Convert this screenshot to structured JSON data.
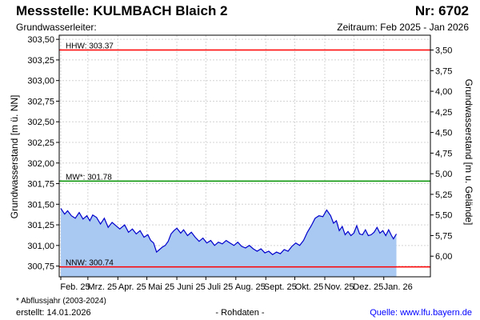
{
  "header": {
    "title": "Messstelle: KULMBACH Blaich 2",
    "station_no": "Nr: 6702",
    "aquifer": "Grundwasserleiter:",
    "period": "Zeitraum: Feb 2025 - Jan 2026"
  },
  "footer": {
    "footnote": "* Abflussjahr (2003-2024)",
    "created": "erstellt:  14.01.2026",
    "raw_data": "- Rohdaten -",
    "source": "Quelle: www.lfu.bayern.de"
  },
  "chart_data": {
    "type": "area",
    "ylabel": "Grundwasserstand [m ü. NN]",
    "ylabel_right": "Grundwasserstand [m u. Gelände]",
    "ylim": [
      300.62,
      303.55
    ],
    "yticks": [
      "303,50",
      "303,25",
      "303,00",
      "302,75",
      "302,50",
      "302,25",
      "302,00",
      "301,75",
      "301,50",
      "301,25",
      "301,00",
      "300,75"
    ],
    "yticks_right": [
      "3,50",
      "3,75",
      "4,00",
      "4,25",
      "4,50",
      "4,75",
      "5,00",
      "5,25",
      "5,50",
      "5,75",
      "6,00"
    ],
    "right_axis_ref_depth0_level": 306.87,
    "xticks": [
      "Feb. 25",
      "Mrz. 25",
      "Apr. 25",
      "Mai 25",
      "Juni 25",
      "Juli 25",
      "Aug. 25",
      "Sept. 25",
      "Okt. 25",
      "Nov. 25",
      "Dez. 25",
      "Jan. 26"
    ],
    "x_start": "2025-02-01",
    "x_end": "2026-01-31",
    "grid": true,
    "reference_lines": [
      {
        "label": "HHW: 303.37",
        "value": 303.37,
        "color": "#ff0000"
      },
      {
        "label": "MW*: 301.78",
        "value": 301.78,
        "color": "#009000"
      },
      {
        "label": "NNW: 300.74",
        "value": 300.74,
        "color": "#ff0000"
      }
    ],
    "series": [
      {
        "color": "#0000cc",
        "fill": "#a9c8f2",
        "points": [
          [
            "2025-02-01",
            301.45
          ],
          [
            "2025-02-05",
            301.38
          ],
          [
            "2025-02-08",
            301.42
          ],
          [
            "2025-02-12",
            301.36
          ],
          [
            "2025-02-16",
            301.33
          ],
          [
            "2025-02-20",
            301.4
          ],
          [
            "2025-02-24",
            301.32
          ],
          [
            "2025-02-28",
            301.36
          ],
          [
            "2025-03-03",
            301.3
          ],
          [
            "2025-03-06",
            301.37
          ],
          [
            "2025-03-10",
            301.34
          ],
          [
            "2025-03-14",
            301.26
          ],
          [
            "2025-03-18",
            301.33
          ],
          [
            "2025-03-22",
            301.22
          ],
          [
            "2025-03-26",
            301.28
          ],
          [
            "2025-03-30",
            301.24
          ],
          [
            "2025-04-03",
            301.2
          ],
          [
            "2025-04-08",
            301.25
          ],
          [
            "2025-04-12",
            301.16
          ],
          [
            "2025-04-16",
            301.2
          ],
          [
            "2025-04-20",
            301.14
          ],
          [
            "2025-04-24",
            301.18
          ],
          [
            "2025-04-28",
            301.1
          ],
          [
            "2025-05-02",
            301.13
          ],
          [
            "2025-05-05",
            301.06
          ],
          [
            "2025-05-08",
            301.03
          ],
          [
            "2025-05-11",
            300.92
          ],
          [
            "2025-05-14",
            300.95
          ],
          [
            "2025-05-17",
            300.98
          ],
          [
            "2025-05-20",
            301.0
          ],
          [
            "2025-05-23",
            301.05
          ],
          [
            "2025-05-26",
            301.14
          ],
          [
            "2025-05-29",
            301.18
          ],
          [
            "2025-06-01",
            301.21
          ],
          [
            "2025-06-05",
            301.15
          ],
          [
            "2025-06-08",
            301.19
          ],
          [
            "2025-06-12",
            301.12
          ],
          [
            "2025-06-16",
            301.16
          ],
          [
            "2025-06-20",
            301.1
          ],
          [
            "2025-06-24",
            301.05
          ],
          [
            "2025-06-28",
            301.09
          ],
          [
            "2025-07-02",
            301.03
          ],
          [
            "2025-07-06",
            301.06
          ],
          [
            "2025-07-10",
            301.0
          ],
          [
            "2025-07-14",
            301.04
          ],
          [
            "2025-07-18",
            301.02
          ],
          [
            "2025-07-22",
            301.06
          ],
          [
            "2025-07-26",
            301.03
          ],
          [
            "2025-07-30",
            301.0
          ],
          [
            "2025-08-03",
            301.04
          ],
          [
            "2025-08-07",
            300.99
          ],
          [
            "2025-08-11",
            300.97
          ],
          [
            "2025-08-15",
            301.0
          ],
          [
            "2025-08-19",
            300.96
          ],
          [
            "2025-08-23",
            300.93
          ],
          [
            "2025-08-27",
            300.96
          ],
          [
            "2025-08-31",
            300.91
          ],
          [
            "2025-09-04",
            300.93
          ],
          [
            "2025-09-08",
            300.89
          ],
          [
            "2025-09-12",
            300.92
          ],
          [
            "2025-09-16",
            300.9
          ],
          [
            "2025-09-20",
            300.95
          ],
          [
            "2025-09-24",
            300.93
          ],
          [
            "2025-09-28",
            300.99
          ],
          [
            "2025-10-02",
            301.03
          ],
          [
            "2025-10-06",
            301.0
          ],
          [
            "2025-10-10",
            301.06
          ],
          [
            "2025-10-14",
            301.16
          ],
          [
            "2025-10-18",
            301.24
          ],
          [
            "2025-10-22",
            301.33
          ],
          [
            "2025-10-26",
            301.36
          ],
          [
            "2025-10-30",
            301.35
          ],
          [
            "2025-11-03",
            301.43
          ],
          [
            "2025-11-07",
            301.36
          ],
          [
            "2025-11-10",
            301.27
          ],
          [
            "2025-11-13",
            301.3
          ],
          [
            "2025-11-16",
            301.18
          ],
          [
            "2025-11-19",
            301.23
          ],
          [
            "2025-11-22",
            301.13
          ],
          [
            "2025-11-25",
            301.17
          ],
          [
            "2025-11-28",
            301.12
          ],
          [
            "2025-12-01",
            301.15
          ],
          [
            "2025-12-04",
            301.24
          ],
          [
            "2025-12-07",
            301.14
          ],
          [
            "2025-12-10",
            301.13
          ],
          [
            "2025-12-13",
            301.19
          ],
          [
            "2025-12-16",
            301.12
          ],
          [
            "2025-12-19",
            301.13
          ],
          [
            "2025-12-22",
            301.16
          ],
          [
            "2025-12-25",
            301.22
          ],
          [
            "2025-12-28",
            301.15
          ],
          [
            "2025-12-31",
            301.18
          ],
          [
            "2026-01-03",
            301.12
          ],
          [
            "2026-01-06",
            301.19
          ],
          [
            "2026-01-09",
            301.12
          ],
          [
            "2026-01-11",
            301.08
          ],
          [
            "2026-01-14",
            301.14
          ]
        ]
      }
    ]
  }
}
